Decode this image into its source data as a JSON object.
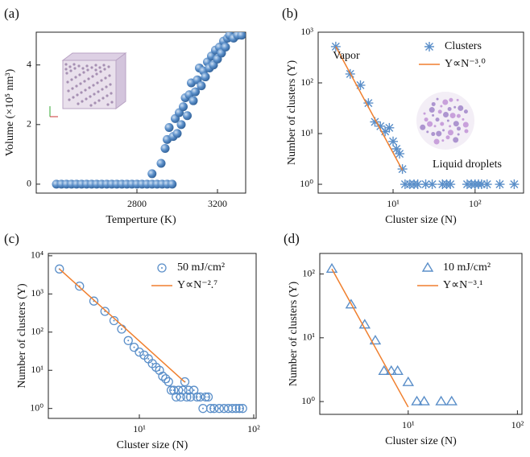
{
  "chart_data": [
    {
      "type": "scatter",
      "panel_label": "(a)",
      "x_label": "Temperture (K)",
      "y_label": "Volume (×10⁵ nm³)",
      "xlim": [
        2300,
        3340
      ],
      "ylim": [
        -0.3,
        5.1
      ],
      "xticks": [
        2800,
        3200
      ],
      "yticks": [
        0,
        2,
        4
      ],
      "x_log": false,
      "y_log": false,
      "series": [
        {
          "marker": "ball",
          "color": "#5b8fc9",
          "x": [
            2400,
            2425,
            2450,
            2475,
            2500,
            2525,
            2550,
            2575,
            2600,
            2625,
            2650,
            2675,
            2700,
            2725,
            2750,
            2775,
            2800,
            2825,
            2850,
            2875,
            2900,
            2925,
            2950,
            2975,
            2875,
            2920,
            2940,
            2950,
            2960,
            2980,
            2990,
            3000,
            3010,
            3020,
            3030,
            3040,
            3050,
            3060,
            3070,
            3080,
            3090,
            3100,
            3110,
            3120,
            3130,
            3140,
            3150,
            3160,
            3170,
            3180,
            3190,
            3200,
            3210,
            3220,
            3230,
            3240,
            3250,
            3260,
            3280,
            3300,
            3320
          ],
          "values": [
            0,
            0,
            0,
            0,
            0,
            0,
            0,
            0,
            0,
            0,
            0,
            0,
            0,
            0,
            0,
            0,
            0,
            0,
            0,
            0,
            0,
            0,
            0,
            0,
            0.35,
            0.7,
            1.2,
            1.5,
            1.9,
            1.6,
            2.2,
            1.7,
            2.4,
            2.0,
            2.6,
            2.9,
            2.3,
            3.0,
            3.4,
            2.8,
            3.1,
            3.5,
            3.9,
            3.3,
            3.8,
            3.6,
            4.1,
            3.9,
            4.3,
            4.0,
            4.5,
            4.2,
            4.6,
            4.4,
            4.8,
            4.6,
            4.9,
            5.0,
            4.9,
            5.0,
            5.0
          ]
        }
      ]
    },
    {
      "type": "scatter",
      "panel_label": "(b)",
      "x_label": "Cluster size (N)",
      "y_label": "Number of clusters (Y)",
      "xlim": [
        1.22,
        390
      ],
      "ylim": [
        0.67,
        1000
      ],
      "x_log": true,
      "y_log": true,
      "xticks": [
        {
          "value": 10,
          "label": "10¹"
        },
        {
          "value": 100,
          "label": "10²"
        }
      ],
      "yticks": [
        {
          "value": 1,
          "label": "10⁰"
        },
        {
          "value": 10,
          "label": "10¹"
        },
        {
          "value": 100,
          "label": "10²"
        },
        {
          "value": 1000,
          "label": "10³"
        }
      ],
      "annotations": [
        "Vapor",
        "Liquid droplets"
      ],
      "legend": "upper right",
      "series": [
        {
          "name": "Clusters",
          "marker": "asterisk",
          "color": "#5b8fc9",
          "x": [
            2,
            3,
            4,
            5,
            6,
            7,
            8,
            9,
            10,
            11,
            12,
            13,
            14,
            16,
            18,
            20,
            25,
            30,
            40,
            45,
            50,
            80,
            90,
            100,
            110,
            120,
            140,
            200,
            300
          ],
          "values": [
            520,
            150,
            90,
            40,
            17,
            14,
            11,
            13,
            7,
            5,
            4,
            2,
            1,
            1,
            1,
            1,
            1,
            1,
            1,
            1,
            1,
            1,
            1,
            1,
            1,
            1,
            1,
            1,
            1
          ]
        },
        {
          "name": "Y∝N⁻³.⁰",
          "marker": "line",
          "color": "#f07f2e",
          "x": [
            2,
            13
          ],
          "values": [
            520,
            1.9
          ]
        }
      ]
    },
    {
      "type": "scatter",
      "panel_label": "(c)",
      "x_label": "Cluster size (N)",
      "y_label": "Number of clusters (Y)",
      "xlim": [
        1.6,
        105
      ],
      "ylim": [
        0.55,
        11500
      ],
      "x_log": true,
      "y_log": true,
      "xticks": [
        {
          "value": 10,
          "label": "10¹"
        },
        {
          "value": 100,
          "label": "10²"
        }
      ],
      "yticks": [
        {
          "value": 1,
          "label": "10⁰"
        },
        {
          "value": 10,
          "label": "10¹"
        },
        {
          "value": 100,
          "label": "10²"
        },
        {
          "value": 1000,
          "label": "10³"
        },
        {
          "value": 10000,
          "label": "10⁴"
        }
      ],
      "legend": "upper right",
      "series": [
        {
          "name": "50 mJ/cm²",
          "marker": "circle-dot",
          "color": "#5b8fc9",
          "x": [
            2,
            3,
            4,
            5,
            6,
            7,
            8,
            9,
            10,
            11,
            12,
            13,
            14,
            15,
            16,
            17,
            18,
            19,
            20,
            21,
            22,
            23,
            24,
            25,
            26,
            27,
            28,
            30,
            32,
            34,
            36,
            38,
            40,
            42,
            45,
            50,
            55,
            60,
            65,
            70,
            75,
            80
          ],
          "values": [
            4500,
            1600,
            650,
            350,
            200,
            120,
            60,
            40,
            30,
            25,
            20,
            15,
            12,
            10,
            7,
            6,
            5,
            3,
            3,
            2,
            3,
            2,
            3,
            5,
            2,
            3,
            2,
            3,
            2,
            2,
            1,
            2,
            2,
            1,
            1,
            1,
            1,
            1,
            1,
            1,
            1,
            1
          ]
        },
        {
          "name": "Y∝N⁻².⁷",
          "marker": "line",
          "color": "#f07f2e",
          "x": [
            2,
            25
          ],
          "values": [
            4500,
            4.9
          ]
        }
      ]
    },
    {
      "type": "scatter",
      "panel_label": "(d)",
      "x_label": "Cluster size (N)",
      "y_label": "Number of clusters (Y)",
      "xlim": [
        1.55,
        110
      ],
      "ylim": [
        0.63,
        210
      ],
      "x_log": true,
      "y_log": true,
      "xticks": [
        {
          "value": 10,
          "label": "10¹"
        },
        {
          "value": 100,
          "label": "10²"
        }
      ],
      "yticks": [
        {
          "value": 1,
          "label": "10⁰"
        },
        {
          "value": 10,
          "label": "10¹"
        },
        {
          "value": 100,
          "label": "10²"
        }
      ],
      "legend": "upper right",
      "series": [
        {
          "name": "10 mJ/cm²",
          "marker": "triangle",
          "color": "#5b8fc9",
          "x": [
            2,
            3,
            4,
            5,
            6,
            7,
            8,
            10,
            12,
            14,
            20,
            25
          ],
          "values": [
            120,
            33,
            16,
            9,
            3,
            3,
            3,
            2,
            1,
            1,
            1,
            1
          ]
        },
        {
          "name": "Y∝N⁻³.¹",
          "marker": "line",
          "color": "#f07f2e",
          "x": [
            2,
            10
          ],
          "values": [
            120,
            0.82
          ]
        }
      ]
    }
  ]
}
